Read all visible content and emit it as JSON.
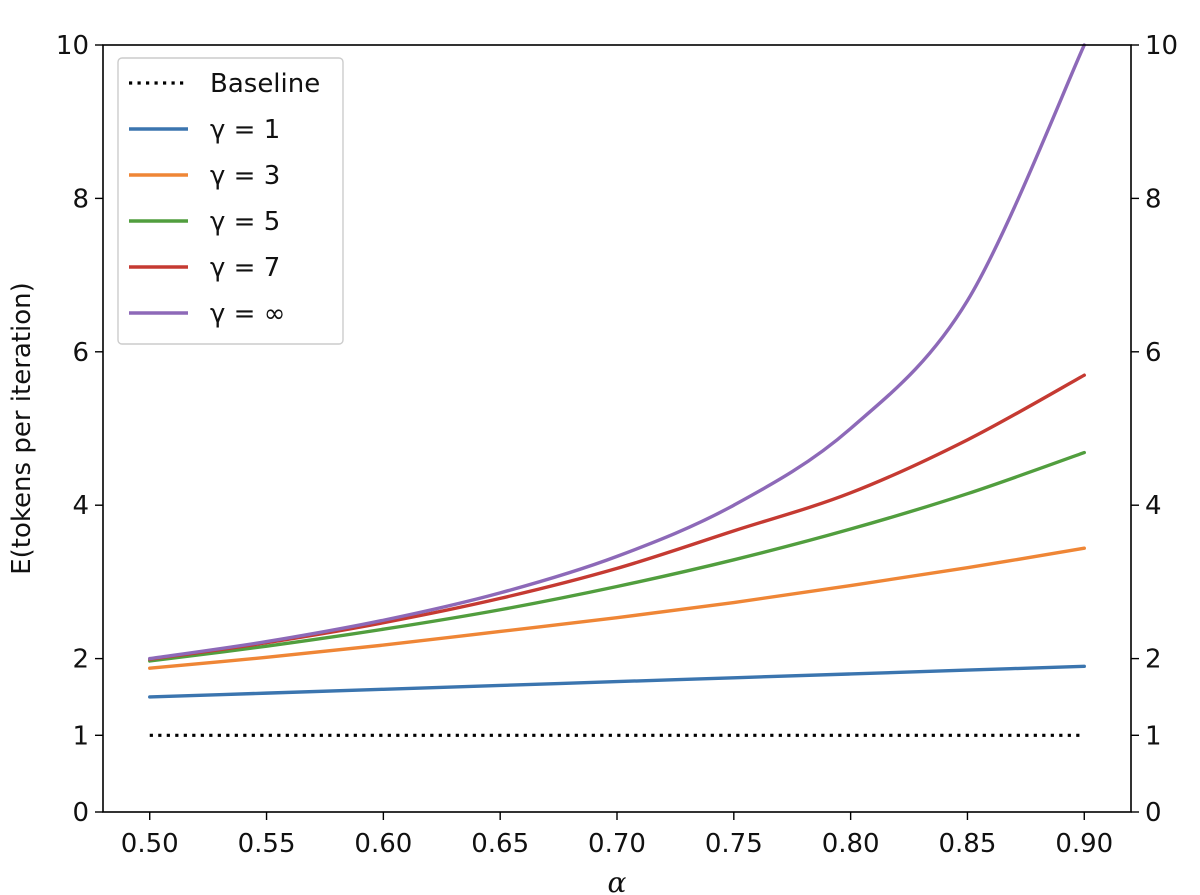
{
  "chart_data": {
    "type": "line",
    "title": "",
    "xlabel": "α",
    "ylabel": "E(tokens per iteration)",
    "xlim": [
      0.48,
      0.92
    ],
    "ylim": [
      0,
      10
    ],
    "xticks": [
      0.5,
      0.55,
      0.6,
      0.65,
      0.7,
      0.75,
      0.8,
      0.85,
      0.9
    ],
    "xtick_labels": [
      "0.50",
      "0.55",
      "0.60",
      "0.65",
      "0.70",
      "0.75",
      "0.80",
      "0.85",
      "0.90"
    ],
    "yticks": [
      0,
      1,
      2,
      4,
      6,
      8,
      10
    ],
    "ytick_labels": [
      "0",
      "1",
      "2",
      "4",
      "6",
      "8",
      "10"
    ],
    "legend_position": "top-left",
    "series": [
      {
        "name": "Baseline",
        "legend_text": "Baseline",
        "color": "#000000",
        "style": "dotted",
        "x": [
          0.5,
          0.9
        ],
        "y": [
          1.0,
          1.0
        ]
      },
      {
        "name": "gamma-1",
        "legend_text": "γ = 1",
        "color": "#3b75af",
        "style": "solid",
        "x": [
          0.5,
          0.55,
          0.6,
          0.65,
          0.7,
          0.75,
          0.8,
          0.85,
          0.9
        ],
        "y": [
          1.5,
          1.55,
          1.6,
          1.65,
          1.7,
          1.75,
          1.8,
          1.85,
          1.9
        ]
      },
      {
        "name": "gamma-3",
        "legend_text": "γ = 3",
        "color": "#ef8636",
        "style": "solid",
        "x": [
          0.5,
          0.55,
          0.6,
          0.65,
          0.7,
          0.75,
          0.8,
          0.85,
          0.9
        ],
        "y": [
          1.875,
          2.016,
          2.176,
          2.354,
          2.533,
          2.731,
          2.952,
          3.185,
          3.439
        ]
      },
      {
        "name": "gamma-5",
        "legend_text": "γ = 5",
        "color": "#519e3e",
        "style": "solid",
        "x": [
          0.5,
          0.55,
          0.6,
          0.65,
          0.7,
          0.75,
          0.8,
          0.85,
          0.9
        ],
        "y": [
          1.969,
          2.162,
          2.383,
          2.637,
          2.94,
          3.288,
          3.689,
          4.15,
          4.686
        ]
      },
      {
        "name": "gamma-7",
        "legend_text": "γ = 7",
        "color": "#c53a32",
        "style": "solid",
        "x": [
          0.5,
          0.55,
          0.6,
          0.65,
          0.7,
          0.75,
          0.8,
          0.85,
          0.9
        ],
        "y": [
          1.992,
          2.207,
          2.468,
          2.785,
          3.176,
          3.665,
          4.161,
          4.852,
          5.695
        ]
      },
      {
        "name": "gamma-infinity",
        "legend_text": "γ = ∞",
        "color": "#8d69b8",
        "style": "solid",
        "x": [
          0.5,
          0.55,
          0.6,
          0.65,
          0.7,
          0.75,
          0.8,
          0.85,
          0.9
        ],
        "y": [
          2.0,
          2.222,
          2.5,
          2.857,
          3.333,
          4.0,
          5.0,
          6.667,
          10.0
        ]
      }
    ]
  }
}
